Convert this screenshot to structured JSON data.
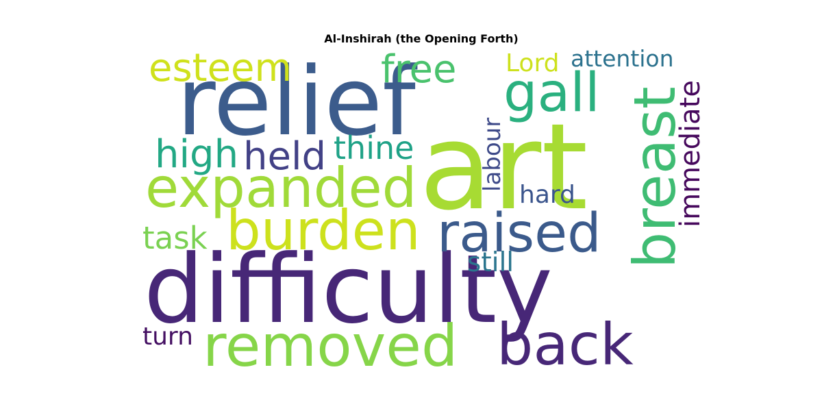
{
  "title": "Al-Inshirah (the Opening Forth)",
  "words": [
    {
      "text": "difficulty",
      "color": "#472777",
      "orientation": "horizontal"
    },
    {
      "text": "relief",
      "color": "#3c5c8c",
      "orientation": "horizontal"
    },
    {
      "text": "art",
      "color": "#a7db33",
      "orientation": "horizontal"
    },
    {
      "text": "removed",
      "color": "#86d549",
      "orientation": "horizontal"
    },
    {
      "text": "back",
      "color": "#472777",
      "orientation": "horizontal"
    },
    {
      "text": "breast",
      "color": "#3fbc73",
      "orientation": "vertical"
    },
    {
      "text": "burden",
      "color": "#cde11d",
      "orientation": "horizontal"
    },
    {
      "text": "raised",
      "color": "#3b5a8b",
      "orientation": "horizontal"
    },
    {
      "text": "expanded",
      "color": "#a0da39",
      "orientation": "horizontal"
    },
    {
      "text": "gall",
      "color": "#2ab07f",
      "orientation": "horizontal"
    },
    {
      "text": "free",
      "color": "#4ac26d",
      "orientation": "horizontal"
    },
    {
      "text": "esteem",
      "color": "#cfe11c",
      "orientation": "horizontal"
    },
    {
      "text": "high",
      "color": "#22a884",
      "orientation": "horizontal"
    },
    {
      "text": "held",
      "color": "#424186",
      "orientation": "horizontal"
    },
    {
      "text": "thine",
      "color": "#1fa287",
      "orientation": "horizontal"
    },
    {
      "text": "immediate",
      "color": "#46085c",
      "orientation": "vertical"
    },
    {
      "text": "labour",
      "color": "#3e4a89",
      "orientation": "vertical"
    },
    {
      "text": "Lord",
      "color": "#cde11d",
      "orientation": "horizontal"
    },
    {
      "text": "attention",
      "color": "#2c728e",
      "orientation": "horizontal"
    },
    {
      "text": "hard",
      "color": "#3a548c",
      "orientation": "horizontal"
    },
    {
      "text": "task",
      "color": "#7ad151",
      "orientation": "horizontal"
    },
    {
      "text": "still",
      "color": "#2b758e",
      "orientation": "horizontal"
    },
    {
      "text": "turn",
      "color": "#440f62",
      "orientation": "horizontal"
    }
  ]
}
